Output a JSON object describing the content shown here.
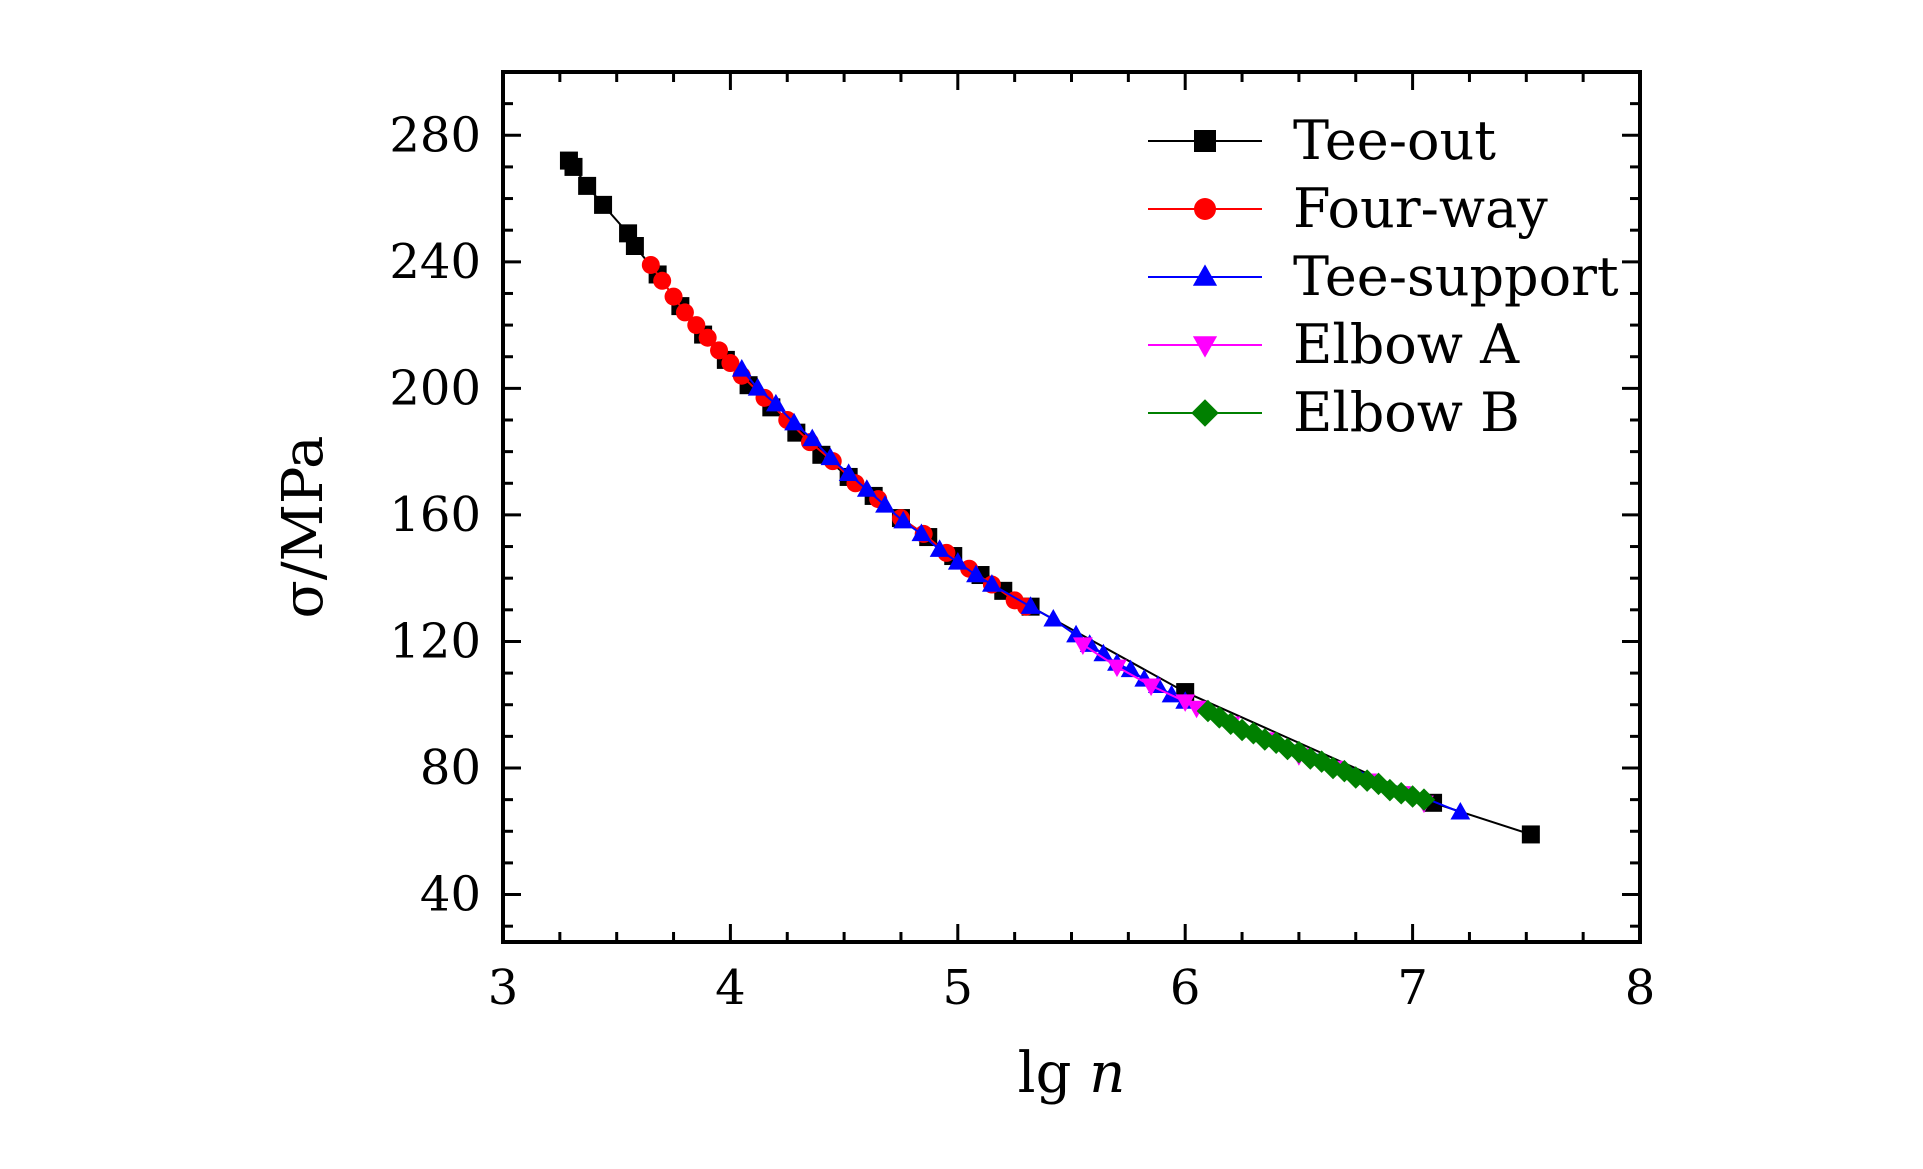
{
  "chart_data": {
    "type": "scatter",
    "title": "",
    "xlabel": "lg n",
    "xlabel_main": "lg ",
    "xlabel_var": "n",
    "ylabel": "σ/MPa",
    "xlim": [
      3,
      8
    ],
    "ylim": [
      25,
      300
    ],
    "xticks": [
      3,
      4,
      5,
      6,
      7,
      8
    ],
    "yticks": [
      40,
      80,
      120,
      160,
      200,
      240,
      280
    ],
    "grid": false,
    "legend": "top-right",
    "series": [
      {
        "name": "Tee-out",
        "color": "#000000",
        "marker": "square",
        "x": [
          3.29,
          3.31,
          3.37,
          3.44,
          3.55,
          3.58,
          3.68,
          3.78,
          3.88,
          3.98,
          4.08,
          4.18,
          4.29,
          4.4,
          4.52,
          4.63,
          4.75,
          4.87,
          4.98,
          5.1,
          5.2,
          5.32,
          6.0,
          7.09,
          7.52
        ],
        "y": [
          272,
          270,
          264,
          258,
          249,
          245,
          236,
          226,
          217,
          209,
          201,
          194,
          186,
          179,
          172,
          166,
          159,
          153,
          147,
          141,
          136,
          131,
          104,
          69,
          59
        ]
      },
      {
        "name": "Four-way",
        "color": "#ff0000",
        "marker": "circle",
        "x": [
          3.65,
          3.7,
          3.75,
          3.8,
          3.85,
          3.9,
          3.95,
          4.0,
          4.05,
          4.15,
          4.25,
          4.35,
          4.45,
          4.55,
          4.65,
          4.75,
          4.85,
          4.95,
          5.05,
          5.15,
          5.25,
          5.3
        ],
        "y": [
          239,
          234,
          229,
          224,
          220,
          216,
          212,
          208,
          204,
          197,
          190,
          183,
          177,
          170,
          165,
          159,
          154,
          148,
          143,
          138,
          133,
          131
        ]
      },
      {
        "name": "Tee-support",
        "color": "#0000ff",
        "marker": "triangle-up",
        "x": [
          4.05,
          4.12,
          4.2,
          4.28,
          4.36,
          4.44,
          4.52,
          4.6,
          4.68,
          4.76,
          4.84,
          4.92,
          5.0,
          5.08,
          5.15,
          5.32,
          5.42,
          5.52,
          5.58,
          5.64,
          5.7,
          5.76,
          5.82,
          5.88,
          5.94,
          6.0,
          7.21
        ],
        "y": [
          206,
          200,
          195,
          189,
          184,
          178,
          173,
          168,
          163,
          158,
          154,
          149,
          145,
          141,
          138,
          131,
          127,
          122,
          119,
          116,
          113,
          111,
          108,
          106,
          103,
          101,
          66
        ]
      },
      {
        "name": "Elbow A",
        "color": "#ff00ff",
        "marker": "triangle-down",
        "x": [
          5.55,
          5.7,
          5.85,
          6.0,
          6.05,
          6.2,
          6.35,
          6.5,
          6.65,
          6.8,
          6.95,
          7.05
        ],
        "y": [
          119,
          112,
          106,
          101,
          99,
          94,
          89,
          84,
          80,
          76,
          72,
          69
        ]
      },
      {
        "name": "Elbow B",
        "color": "#008000",
        "marker": "diamond",
        "x": [
          6.1,
          6.15,
          6.2,
          6.25,
          6.3,
          6.35,
          6.4,
          6.45,
          6.5,
          6.55,
          6.6,
          6.65,
          6.7,
          6.75,
          6.8,
          6.85,
          6.9,
          6.95,
          7.0,
          7.05
        ],
        "y": [
          98,
          96,
          94,
          92,
          91,
          89,
          88,
          86,
          85,
          83,
          82,
          80,
          79,
          77,
          76,
          75,
          73,
          72,
          71,
          70
        ]
      }
    ]
  }
}
